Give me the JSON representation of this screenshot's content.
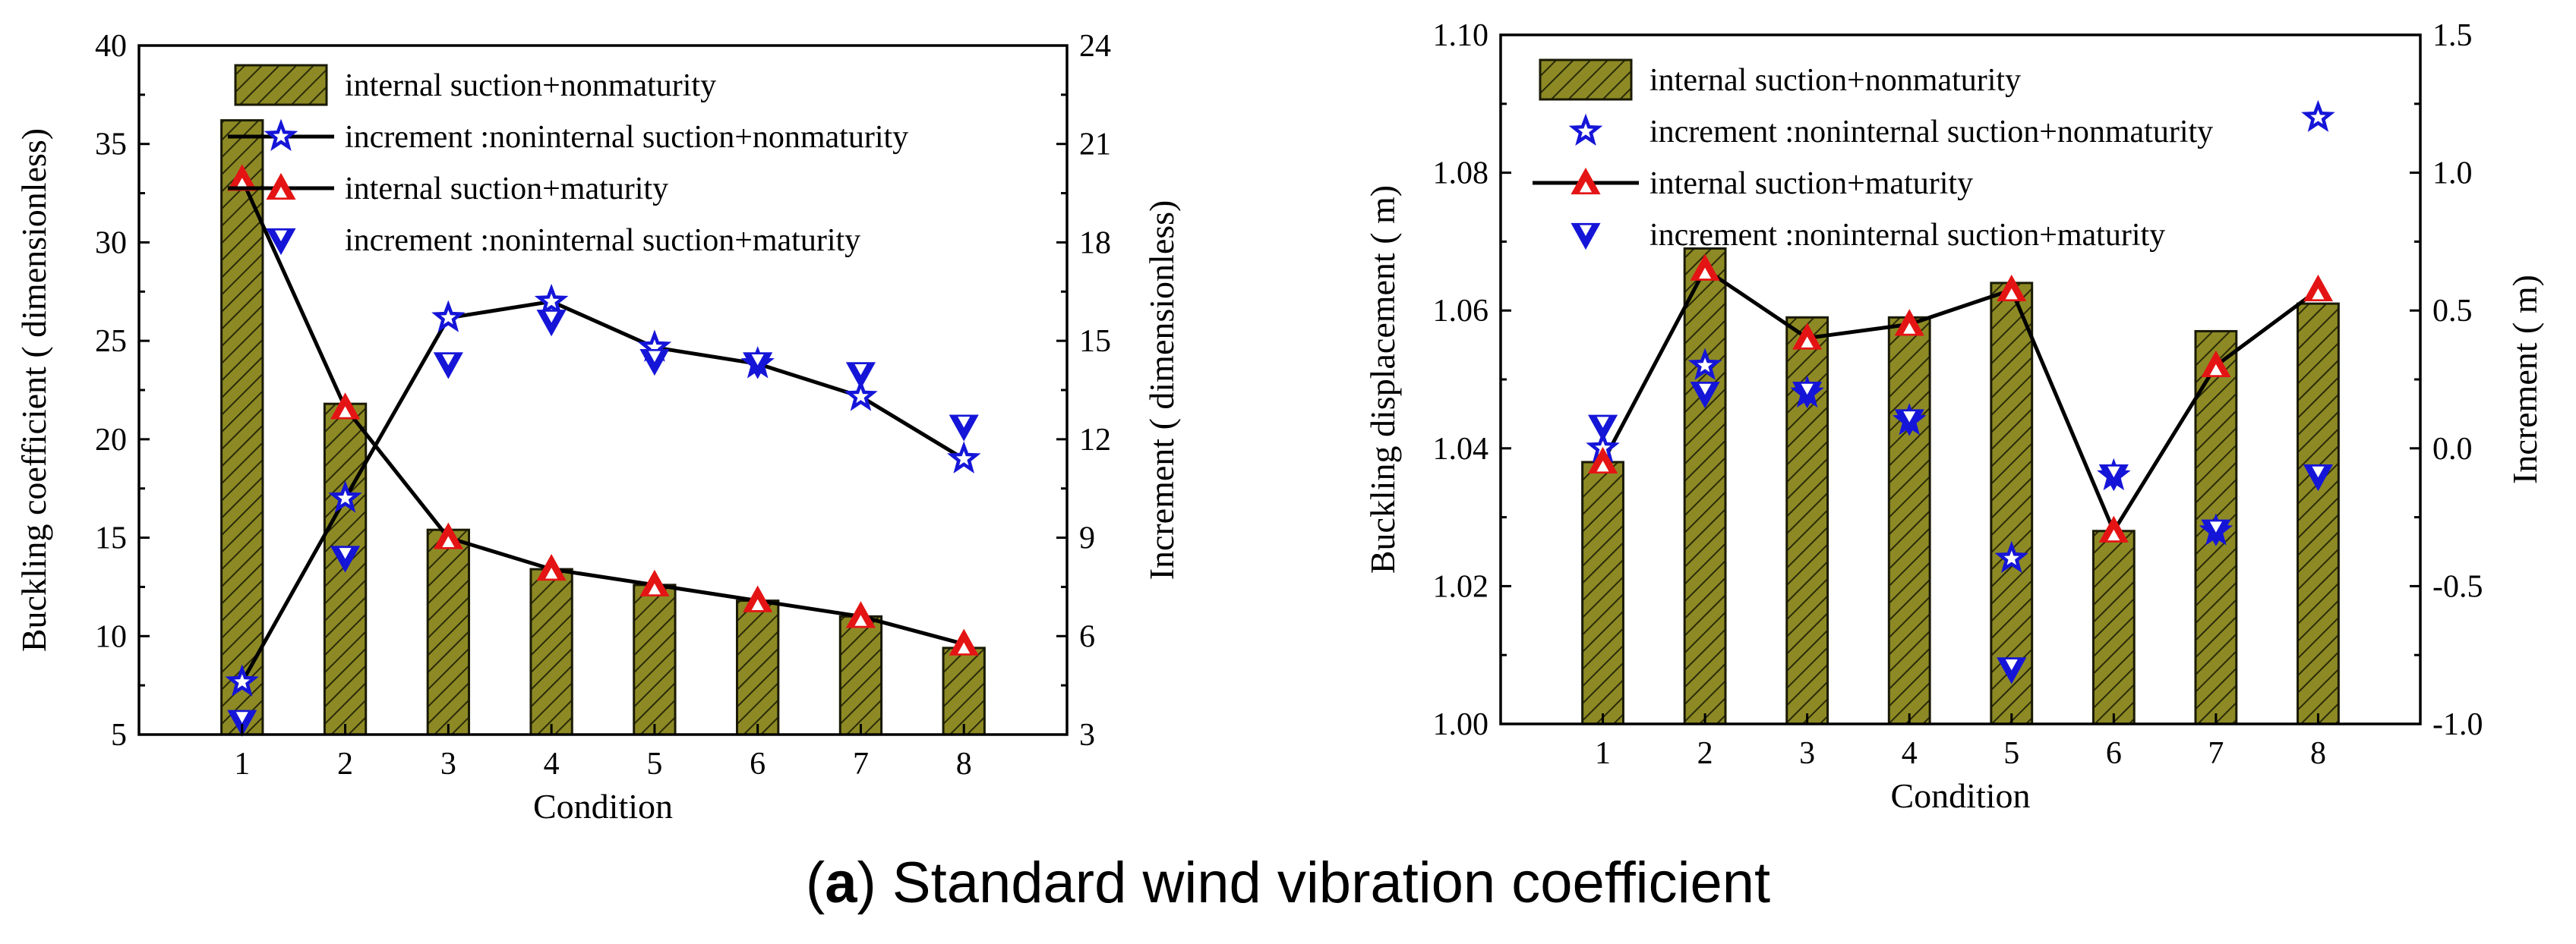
{
  "caption": {
    "label": "a",
    "text": "Standard wind vibration coefficient"
  },
  "chart_data": [
    {
      "type": "bar",
      "title": "",
      "xlabel": "Condition",
      "ylabel": "Buckling coefficient ( dimensionless)",
      "y2label": "Increment ( dimensionless)",
      "categories": [
        "1",
        "2",
        "3",
        "4",
        "5",
        "6",
        "7",
        "8"
      ],
      "ylim": [
        5,
        40
      ],
      "yticks": [
        "5",
        "10",
        "15",
        "20",
        "25",
        "30",
        "35",
        "40"
      ],
      "y2lim": [
        3,
        24
      ],
      "y2ticks": [
        "3",
        "6",
        "9",
        "12",
        "15",
        "18",
        "21",
        "24"
      ],
      "legend_position": "top",
      "series": [
        {
          "name": "internal suction+nonmaturity",
          "kind": "bar",
          "axis": "left",
          "values": [
            36.2,
            21.8,
            15.4,
            13.4,
            12.6,
            11.8,
            11.0,
            9.4
          ]
        },
        {
          "name": "increment :noninternal suction+nonmaturity",
          "kind": "line",
          "marker": "star",
          "color": "#1515d8",
          "axis": "right",
          "values": [
            4.6,
            10.2,
            15.7,
            16.2,
            14.8,
            14.3,
            13.3,
            11.4
          ]
        },
        {
          "name": "internal suction+maturity",
          "kind": "line",
          "marker": "triangle",
          "color": "#e41414",
          "axis": "left",
          "values": [
            33.2,
            21.6,
            15.0,
            13.4,
            12.6,
            11.8,
            11.0,
            9.6
          ]
        },
        {
          "name": "increment :noninternal suction+maturity",
          "kind": "scatter",
          "marker": "triangle-down",
          "color": "#1515d8",
          "axis": "right",
          "values": [
            3.4,
            8.4,
            14.3,
            15.6,
            14.4,
            14.3,
            14.0,
            12.4
          ]
        }
      ]
    },
    {
      "type": "bar",
      "title": "",
      "xlabel": "Condition",
      "ylabel": "Buckling displacement ( m)",
      "y2label": "Increment ( m)",
      "categories": [
        "1",
        "2",
        "3",
        "4",
        "5",
        "6",
        "7",
        "8"
      ],
      "ylim": [
        1.0,
        1.1
      ],
      "yticks": [
        "1.00",
        "1.02",
        "1.04",
        "1.06",
        "1.08",
        "1.10"
      ],
      "y2lim": [
        -1.0,
        1.5
      ],
      "y2ticks": [
        "-1.0",
        "-0.5",
        "0.0",
        "0.5",
        "1.0",
        "1.5"
      ],
      "legend_position": "top",
      "series": [
        {
          "name": "internal suction+nonmaturity",
          "kind": "bar",
          "axis": "left",
          "values": [
            1.038,
            1.069,
            1.059,
            1.059,
            1.064,
            1.028,
            1.057,
            1.061
          ]
        },
        {
          "name": "increment :noninternal suction+nonmaturity",
          "kind": "scatter",
          "marker": "star",
          "color": "#1515d8",
          "axis": "right",
          "values": [
            0.0,
            0.3,
            0.2,
            0.1,
            -0.4,
            -0.1,
            -0.3,
            1.2
          ]
        },
        {
          "name": "internal suction+maturity",
          "kind": "line",
          "marker": "triangle",
          "color": "#e41414",
          "axis": "left",
          "values": [
            1.038,
            1.066,
            1.056,
            1.058,
            1.063,
            1.028,
            1.052,
            1.063
          ]
        },
        {
          "name": "increment :noninternal suction+maturity",
          "kind": "scatter",
          "marker": "triangle-down",
          "color": "#1515d8",
          "axis": "right",
          "values": [
            0.08,
            0.2,
            0.2,
            0.1,
            -0.8,
            -0.1,
            -0.3,
            -0.1
          ]
        }
      ]
    }
  ]
}
